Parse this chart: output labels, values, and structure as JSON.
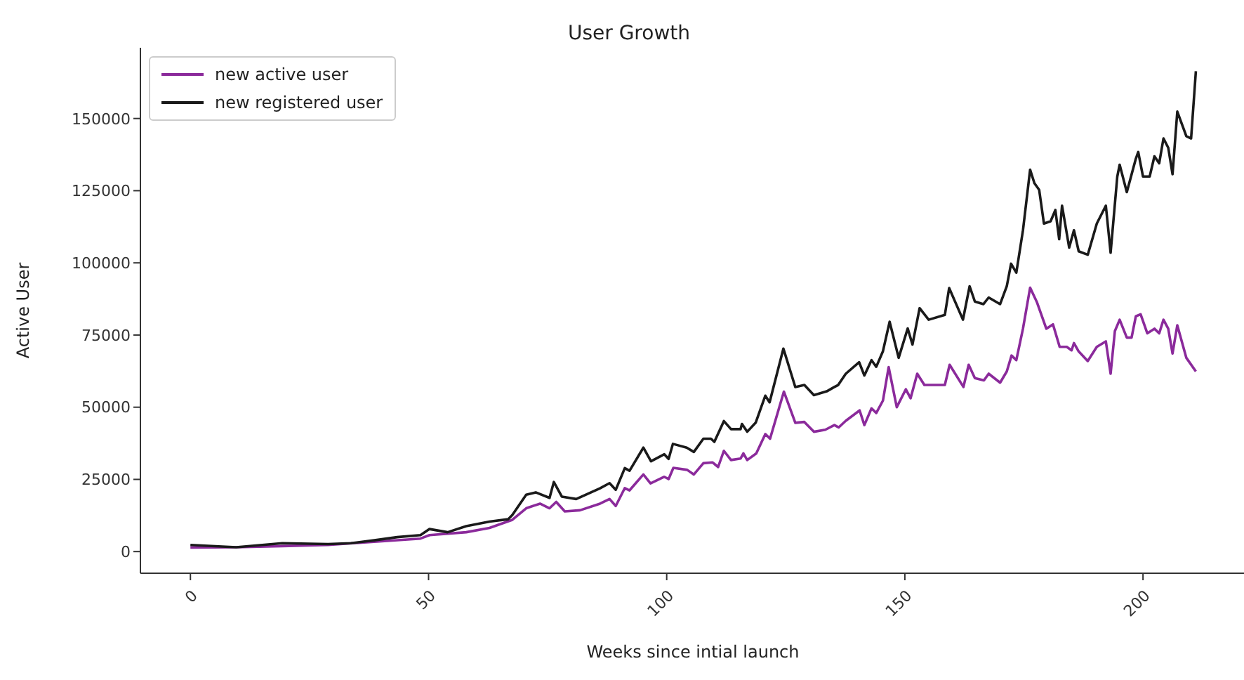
{
  "chart_data": {
    "type": "line",
    "title": "User Growth",
    "xlabel": "Weeks since intial launch",
    "ylabel": "Active User",
    "xlim": [
      -10.5,
      221.5
    ],
    "xticks": [
      0,
      50,
      100,
      150,
      200
    ],
    "ylim": [
      -7500,
      174500
    ],
    "yticks": [
      0,
      25000,
      50000,
      75000,
      100000,
      125000,
      150000
    ],
    "grid": false,
    "legend": "top left",
    "line_style": "solid",
    "marker": "none",
    "series": [
      {
        "name": "new active user",
        "color": "#8b2a9b",
        "x": [
          0,
          9.6,
          19.3,
          28.9,
          38.6,
          48.3,
          50.2,
          57.9,
          62.8,
          67.6,
          70.5,
          73.4,
          75.4,
          76.8,
          78.6,
          81.8,
          86,
          88,
          89.3,
          91.2,
          92.2,
          95.1,
          96.6,
          99.5,
          100.4,
          101.4,
          104.3,
          105.7,
          107.7,
          109.6,
          110.8,
          112,
          113.5,
          115.5,
          116.1,
          116.9,
          118.8,
          120.7,
          121.7,
          124.6,
          127,
          128.9,
          130.9,
          133.3,
          135.2,
          136.1,
          137.6,
          140.5,
          141.5,
          143,
          144,
          145.4,
          146.6,
          148.3,
          150.2,
          151.2,
          152.6,
          154.1,
          158.4,
          159.4,
          162.3,
          163.4,
          164.7,
          166.6,
          167.6,
          170,
          171.4,
          172.4,
          173.4,
          174.8,
          176.3,
          177.7,
          179.7,
          181.1,
          182.5,
          184,
          185,
          185.5,
          186.5,
          188.4,
          190.3,
          192.2,
          193.2,
          194.1,
          195.1,
          196.6,
          197.6,
          198.5,
          199.5,
          200.9,
          202.4,
          203.4,
          204.3,
          205.3,
          206.2,
          207.2,
          209.1,
          211.1
        ],
        "values": [
          1400,
          1500,
          1900,
          2300,
          3400,
          4500,
          5700,
          6700,
          8200,
          11000,
          15000,
          16600,
          15000,
          17200,
          13900,
          14300,
          16600,
          18200,
          15800,
          22000,
          21200,
          26700,
          23600,
          25900,
          25100,
          29000,
          28300,
          26700,
          30600,
          30900,
          29300,
          34900,
          31700,
          32200,
          34000,
          31700,
          34000,
          40700,
          39100,
          55400,
          44600,
          44900,
          41500,
          42200,
          43800,
          43000,
          45300,
          48900,
          43800,
          49600,
          48000,
          52300,
          63900,
          50000,
          56200,
          53100,
          61600,
          57700,
          57700,
          64700,
          57000,
          64700,
          60100,
          59300,
          61600,
          58500,
          62400,
          67900,
          66300,
          77200,
          91400,
          86500,
          77200,
          78700,
          70900,
          70900,
          69700,
          72200,
          69300,
          66000,
          70900,
          72800,
          61600,
          76400,
          80300,
          74100,
          74100,
          81500,
          82200,
          75600,
          77200,
          75600,
          80300,
          77200,
          68600,
          78400,
          67100,
          62400
        ]
      },
      {
        "name": "new registered user",
        "color": "#1a1a1a",
        "x": [
          0,
          9.6,
          19.3,
          28.9,
          33.7,
          38.6,
          43.4,
          48.3,
          50.2,
          54,
          57.9,
          62.8,
          66.7,
          67.6,
          70.5,
          72.5,
          75.4,
          76.3,
          78,
          81,
          86,
          88,
          89.3,
          91.2,
          92.2,
          95.1,
          96.7,
          99.5,
          100.4,
          101.3,
          104.2,
          105.7,
          107.7,
          109.3,
          110,
          112,
          113.5,
          115.5,
          115.8,
          116.9,
          118.7,
          120.7,
          121.6,
          124.5,
          127,
          128.9,
          130.9,
          133.6,
          135.2,
          136,
          137.6,
          140.4,
          141.5,
          143,
          144,
          145.4,
          146.8,
          148.7,
          150.6,
          151.6,
          153.1,
          155,
          158.4,
          159.3,
          162.2,
          163.6,
          164.7,
          166.5,
          167.6,
          170,
          171.4,
          172.3,
          173.4,
          174.8,
          176.3,
          177.2,
          178.2,
          179.2,
          180.6,
          181.6,
          182.4,
          183,
          184.5,
          185.5,
          186.5,
          188.4,
          190.3,
          192.2,
          193.2,
          194.6,
          195.1,
          196.6,
          198.5,
          199,
          200,
          201.4,
          202.4,
          203.4,
          204.3,
          205.3,
          206.2,
          207.2,
          209.1,
          210.1,
          211.1
        ],
        "values": [
          2300,
          1500,
          2900,
          2600,
          2900,
          3900,
          5000,
          5700,
          7800,
          6700,
          8800,
          10400,
          11200,
          12700,
          19700,
          20500,
          18600,
          24100,
          19000,
          18200,
          21900,
          23700,
          21400,
          28900,
          28000,
          36000,
          31300,
          33700,
          32100,
          37300,
          36000,
          34500,
          39100,
          39100,
          38000,
          45200,
          42400,
          42400,
          44200,
          41500,
          44700,
          54000,
          51700,
          70300,
          57000,
          57700,
          54200,
          55500,
          57000,
          57700,
          61600,
          65600,
          61000,
          66300,
          64000,
          69400,
          79600,
          67100,
          77300,
          71700,
          84300,
          80300,
          82000,
          91300,
          80300,
          91900,
          86600,
          85700,
          88000,
          85700,
          91900,
          99700,
          96600,
          111300,
          132300,
          127600,
          125300,
          113600,
          114400,
          118300,
          108200,
          119800,
          105300,
          111300,
          104000,
          102800,
          113600,
          119800,
          103500,
          129900,
          134000,
          124500,
          136100,
          138400,
          129900,
          129900,
          136900,
          134500,
          143100,
          139900,
          130700,
          152400,
          143900,
          143100,
          166400
        ]
      }
    ]
  }
}
